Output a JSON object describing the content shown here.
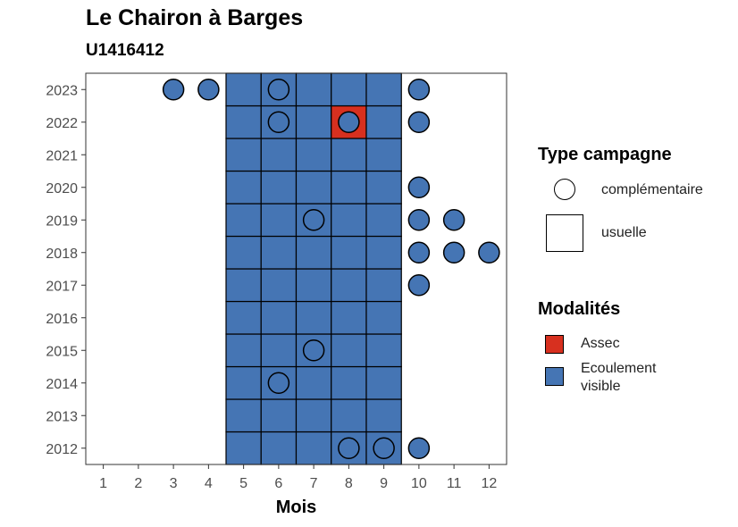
{
  "chart_data": {
    "type": "scatter",
    "title": "Le Chairon à Barges",
    "subtitle": "U1416412",
    "xlabel": "Mois",
    "ylabel": "",
    "x_ticks": [
      1,
      2,
      3,
      4,
      5,
      6,
      7,
      8,
      9,
      10,
      11,
      12
    ],
    "y_ticks": [
      2012,
      2013,
      2014,
      2015,
      2016,
      2017,
      2018,
      2019,
      2020,
      2021,
      2022,
      2023
    ],
    "xlim": [
      0.5,
      12.5
    ],
    "ylim": [
      2011.5,
      2023.5
    ],
    "grid": false,
    "legend_position": "right",
    "legends": [
      {
        "title": "Type campagne",
        "items": [
          {
            "label": "complémentaire",
            "shape": "circle"
          },
          {
            "label": "usuelle",
            "shape": "square"
          }
        ]
      },
      {
        "title": "Modalités",
        "items": [
          {
            "label": "Assec",
            "color": "#d7301f"
          },
          {
            "label": "Ecoulement visible",
            "color": "#4575b4"
          }
        ]
      }
    ],
    "series": [
      {
        "name": "usuelle",
        "shape": "square",
        "points": [
          {
            "x": 5,
            "y": 2012,
            "m": "Ecoulement visible"
          },
          {
            "x": 6,
            "y": 2012,
            "m": "Ecoulement visible"
          },
          {
            "x": 7,
            "y": 2012,
            "m": "Ecoulement visible"
          },
          {
            "x": 8,
            "y": 2012,
            "m": "Ecoulement visible"
          },
          {
            "x": 9,
            "y": 2012,
            "m": "Ecoulement visible"
          },
          {
            "x": 5,
            "y": 2013,
            "m": "Ecoulement visible"
          },
          {
            "x": 6,
            "y": 2013,
            "m": "Ecoulement visible"
          },
          {
            "x": 7,
            "y": 2013,
            "m": "Ecoulement visible"
          },
          {
            "x": 8,
            "y": 2013,
            "m": "Ecoulement visible"
          },
          {
            "x": 9,
            "y": 2013,
            "m": "Ecoulement visible"
          },
          {
            "x": 5,
            "y": 2014,
            "m": "Ecoulement visible"
          },
          {
            "x": 6,
            "y": 2014,
            "m": "Ecoulement visible"
          },
          {
            "x": 7,
            "y": 2014,
            "m": "Ecoulement visible"
          },
          {
            "x": 8,
            "y": 2014,
            "m": "Ecoulement visible"
          },
          {
            "x": 9,
            "y": 2014,
            "m": "Ecoulement visible"
          },
          {
            "x": 5,
            "y": 2015,
            "m": "Ecoulement visible"
          },
          {
            "x": 6,
            "y": 2015,
            "m": "Ecoulement visible"
          },
          {
            "x": 7,
            "y": 2015,
            "m": "Ecoulement visible"
          },
          {
            "x": 8,
            "y": 2015,
            "m": "Ecoulement visible"
          },
          {
            "x": 9,
            "y": 2015,
            "m": "Ecoulement visible"
          },
          {
            "x": 5,
            "y": 2016,
            "m": "Ecoulement visible"
          },
          {
            "x": 6,
            "y": 2016,
            "m": "Ecoulement visible"
          },
          {
            "x": 7,
            "y": 2016,
            "m": "Ecoulement visible"
          },
          {
            "x": 8,
            "y": 2016,
            "m": "Ecoulement visible"
          },
          {
            "x": 9,
            "y": 2016,
            "m": "Ecoulement visible"
          },
          {
            "x": 5,
            "y": 2017,
            "m": "Ecoulement visible"
          },
          {
            "x": 6,
            "y": 2017,
            "m": "Ecoulement visible"
          },
          {
            "x": 7,
            "y": 2017,
            "m": "Ecoulement visible"
          },
          {
            "x": 8,
            "y": 2017,
            "m": "Ecoulement visible"
          },
          {
            "x": 9,
            "y": 2017,
            "m": "Ecoulement visible"
          },
          {
            "x": 5,
            "y": 2018,
            "m": "Ecoulement visible"
          },
          {
            "x": 6,
            "y": 2018,
            "m": "Ecoulement visible"
          },
          {
            "x": 7,
            "y": 2018,
            "m": "Ecoulement visible"
          },
          {
            "x": 8,
            "y": 2018,
            "m": "Ecoulement visible"
          },
          {
            "x": 9,
            "y": 2018,
            "m": "Ecoulement visible"
          },
          {
            "x": 5,
            "y": 2019,
            "m": "Ecoulement visible"
          },
          {
            "x": 6,
            "y": 2019,
            "m": "Ecoulement visible"
          },
          {
            "x": 7,
            "y": 2019,
            "m": "Ecoulement visible"
          },
          {
            "x": 8,
            "y": 2019,
            "m": "Ecoulement visible"
          },
          {
            "x": 9,
            "y": 2019,
            "m": "Ecoulement visible"
          },
          {
            "x": 5,
            "y": 2020,
            "m": "Ecoulement visible"
          },
          {
            "x": 6,
            "y": 2020,
            "m": "Ecoulement visible"
          },
          {
            "x": 7,
            "y": 2020,
            "m": "Ecoulement visible"
          },
          {
            "x": 8,
            "y": 2020,
            "m": "Ecoulement visible"
          },
          {
            "x": 9,
            "y": 2020,
            "m": "Ecoulement visible"
          },
          {
            "x": 5,
            "y": 2021,
            "m": "Ecoulement visible"
          },
          {
            "x": 6,
            "y": 2021,
            "m": "Ecoulement visible"
          },
          {
            "x": 7,
            "y": 2021,
            "m": "Ecoulement visible"
          },
          {
            "x": 8,
            "y": 2021,
            "m": "Ecoulement visible"
          },
          {
            "x": 9,
            "y": 2021,
            "m": "Ecoulement visible"
          },
          {
            "x": 5,
            "y": 2022,
            "m": "Ecoulement visible"
          },
          {
            "x": 6,
            "y": 2022,
            "m": "Ecoulement visible"
          },
          {
            "x": 7,
            "y": 2022,
            "m": "Ecoulement visible"
          },
          {
            "x": 8,
            "y": 2022,
            "m": "Assec"
          },
          {
            "x": 9,
            "y": 2022,
            "m": "Ecoulement visible"
          },
          {
            "x": 5,
            "y": 2023,
            "m": "Ecoulement visible"
          },
          {
            "x": 6,
            "y": 2023,
            "m": "Ecoulement visible"
          },
          {
            "x": 7,
            "y": 2023,
            "m": "Ecoulement visible"
          },
          {
            "x": 8,
            "y": 2023,
            "m": "Ecoulement visible"
          },
          {
            "x": 9,
            "y": 2023,
            "m": "Ecoulement visible"
          }
        ]
      },
      {
        "name": "complémentaire",
        "shape": "circle",
        "points": [
          {
            "x": 3,
            "y": 2023,
            "m": "Ecoulement visible"
          },
          {
            "x": 4,
            "y": 2023,
            "m": "Ecoulement visible"
          },
          {
            "x": 6,
            "y": 2023,
            "m": "Ecoulement visible"
          },
          {
            "x": 10,
            "y": 2023,
            "m": "Ecoulement visible"
          },
          {
            "x": 6,
            "y": 2022,
            "m": "Ecoulement visible"
          },
          {
            "x": 8,
            "y": 2022,
            "m": "Ecoulement visible"
          },
          {
            "x": 10,
            "y": 2022,
            "m": "Ecoulement visible"
          },
          {
            "x": 10,
            "y": 2020,
            "m": "Ecoulement visible"
          },
          {
            "x": 7,
            "y": 2019,
            "m": "Ecoulement visible"
          },
          {
            "x": 10,
            "y": 2019,
            "m": "Ecoulement visible"
          },
          {
            "x": 11,
            "y": 2019,
            "m": "Ecoulement visible"
          },
          {
            "x": 10,
            "y": 2018,
            "m": "Ecoulement visible"
          },
          {
            "x": 11,
            "y": 2018,
            "m": "Ecoulement visible"
          },
          {
            "x": 12,
            "y": 2018,
            "m": "Ecoulement visible"
          },
          {
            "x": 10,
            "y": 2017,
            "m": "Ecoulement visible"
          },
          {
            "x": 7,
            "y": 2015,
            "m": "Ecoulement visible"
          },
          {
            "x": 6,
            "y": 2014,
            "m": "Ecoulement visible"
          },
          {
            "x": 8,
            "y": 2012,
            "m": "Ecoulement visible"
          },
          {
            "x": 9,
            "y": 2012,
            "m": "Ecoulement visible"
          },
          {
            "x": 10,
            "y": 2012,
            "m": "Ecoulement visible"
          }
        ]
      }
    ]
  }
}
